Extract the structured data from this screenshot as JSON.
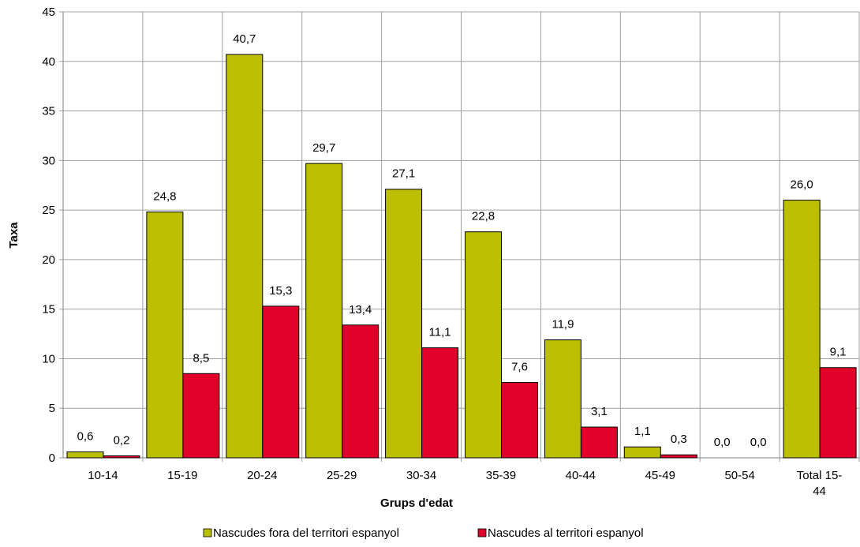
{
  "chart_data": {
    "type": "bar",
    "x_label": "Grups d'edat",
    "y_label": "Taxa",
    "categories": [
      "10-14",
      "15-19",
      "20-24",
      "25-29",
      "30-34",
      "35-39",
      "40-44",
      "45-49",
      "50-54",
      "Total 15-44"
    ],
    "series": [
      {
        "name": "Nascudes fora del territori espanyol",
        "color": "#bcbf00",
        "values": [
          0.6,
          24.8,
          40.7,
          29.7,
          27.1,
          22.8,
          11.9,
          1.1,
          0.0,
          26.0
        ],
        "value_labels": [
          "0,6",
          "24,8",
          "40,7",
          "29,7",
          "27,1",
          "22,8",
          "11,9",
          "1,1",
          "0,0",
          "26,0"
        ]
      },
      {
        "name": "Nascudes al territori espanyol",
        "color": "#e0002a",
        "values": [
          0.2,
          8.5,
          15.3,
          13.4,
          11.1,
          7.6,
          3.1,
          0.3,
          0.0,
          9.1
        ],
        "value_labels": [
          "0,2",
          "8,5",
          "15,3",
          "13,4",
          "11,1",
          "7,6",
          "3,1",
          "0,3",
          "0,0",
          "9,1"
        ]
      }
    ],
    "ylim": [
      0,
      45
    ],
    "yticks": [
      0,
      5,
      10,
      15,
      20,
      25,
      30,
      35,
      40,
      45
    ],
    "grid": true,
    "legend": "bottom"
  }
}
